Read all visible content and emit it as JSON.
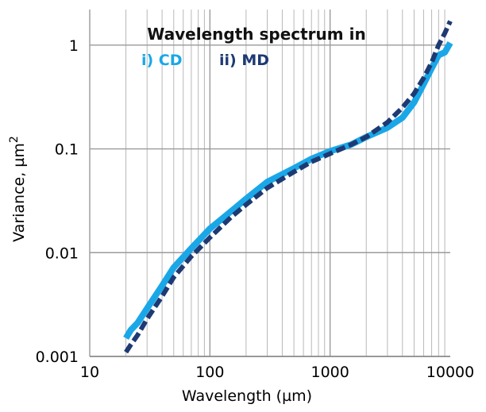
{
  "chart_data": {
    "type": "line",
    "title": "Wavelength spectrum in",
    "xlabel": "Wavelength (µm)",
    "ylabel": "Variance, µm",
    "ylabel_superscript": "2",
    "x_scale": "log",
    "y_scale": "log",
    "xlim": [
      10,
      10000
    ],
    "ylim": [
      0.001,
      2.2
    ],
    "x_ticks": [
      10,
      100,
      1000,
      10000
    ],
    "x_tick_labels": [
      "10",
      "100",
      "1000",
      "10000"
    ],
    "y_ticks": [
      0.001,
      0.01,
      0.1,
      1
    ],
    "y_tick_labels": [
      "0.001",
      "0.01",
      "0.1",
      "1"
    ],
    "grid": true,
    "legend_placement": "top",
    "series": [
      {
        "name": "i) CD",
        "color": "#1aa7e8",
        "style": "solid",
        "x": [
          20,
          22,
          25,
          30,
          40,
          50,
          70,
          100,
          150,
          200,
          300,
          500,
          700,
          1000,
          1500,
          2000,
          3000,
          4000,
          5000,
          6000,
          7000,
          8000,
          9000,
          10000
        ],
        "y": [
          0.0015,
          0.0018,
          0.0021,
          0.0029,
          0.0048,
          0.0072,
          0.011,
          0.017,
          0.025,
          0.033,
          0.048,
          0.065,
          0.08,
          0.095,
          0.11,
          0.13,
          0.16,
          0.2,
          0.28,
          0.42,
          0.6,
          0.8,
          0.85,
          1.05
        ]
      },
      {
        "name": "ii) MD",
        "color": "#1e3a73",
        "style": "dashed",
        "x": [
          20,
          22,
          25,
          30,
          40,
          50,
          70,
          100,
          150,
          200,
          300,
          500,
          700,
          1000,
          1500,
          2000,
          3000,
          4000,
          5000,
          6000,
          7000,
          8000,
          9000,
          10000
        ],
        "y": [
          0.0011,
          0.0013,
          0.0016,
          0.0023,
          0.0038,
          0.0058,
          0.0092,
          0.014,
          0.022,
          0.029,
          0.042,
          0.06,
          0.075,
          0.09,
          0.11,
          0.13,
          0.18,
          0.25,
          0.34,
          0.48,
          0.68,
          1.0,
          1.3,
          1.7
        ]
      }
    ]
  }
}
